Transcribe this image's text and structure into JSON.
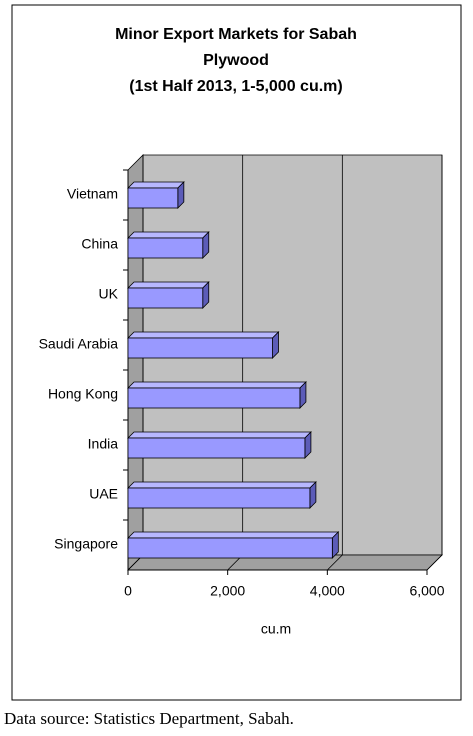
{
  "chart_data": {
    "type": "bar3d-horizontal",
    "title": [
      "Minor Export Markets for Sabah",
      "Plywood",
      "(1st Half 2013, 1-5,000 cu.m)"
    ],
    "x_label": "cu.m",
    "categories": [
      "Vietnam",
      "China",
      "UK",
      "Saudi Arabia",
      "Hong Kong",
      "India",
      "UAE",
      "Singapore"
    ],
    "values": [
      1000,
      1500,
      1500,
      2900,
      3450,
      3550,
      3650,
      4100
    ],
    "color": "#9999ff",
    "xlim": [
      0,
      6000
    ],
    "xticks": [
      0,
      {
        "value": 2000,
        "label": "2,000"
      },
      {
        "value": 4000,
        "label": "4,000"
      },
      {
        "value": 6000,
        "label": "6,000"
      }
    ],
    "grid": true,
    "source": "Data source:  Statistics Department, Sabah."
  }
}
